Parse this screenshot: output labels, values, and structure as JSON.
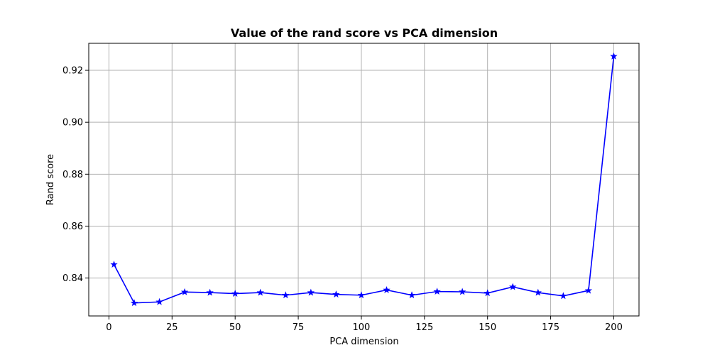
{
  "chart_data": {
    "type": "line",
    "title": "Value of the rand score vs PCA dimension",
    "xlabel": "PCA dimension",
    "ylabel": "Rand score",
    "xlim": [
      -8,
      210
    ],
    "ylim": [
      0.8254,
      0.9304
    ],
    "xticks": [
      0,
      25,
      50,
      75,
      100,
      125,
      150,
      175,
      200
    ],
    "yticks": [
      0.84,
      0.86,
      0.88,
      0.9,
      0.92
    ],
    "ytick_labels": [
      "0.84",
      "0.86",
      "0.88",
      "0.90",
      "0.92"
    ],
    "grid": true,
    "series": [
      {
        "color": "#0000ff",
        "marker": "star",
        "x": [
          2,
          10,
          20,
          30,
          40,
          50,
          60,
          70,
          80,
          90,
          100,
          110,
          120,
          130,
          140,
          150,
          160,
          170,
          180,
          190,
          200
        ],
        "y": [
          0.8452,
          0.8304,
          0.8308,
          0.8346,
          0.8344,
          0.834,
          0.8344,
          0.8334,
          0.8344,
          0.8337,
          0.8334,
          0.8354,
          0.8334,
          0.8348,
          0.8347,
          0.8342,
          0.8366,
          0.8344,
          0.8331,
          0.8352,
          0.9254
        ]
      }
    ]
  }
}
